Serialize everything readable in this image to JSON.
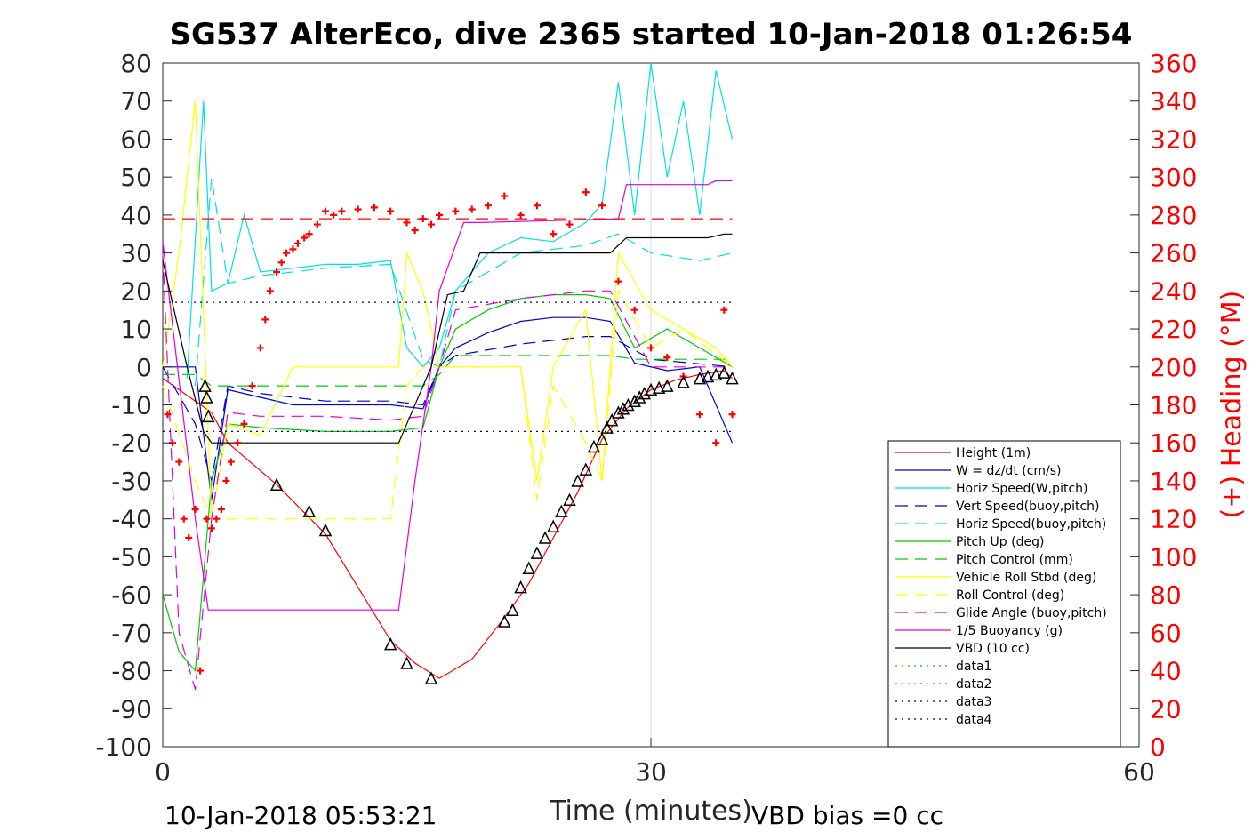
{
  "chart_data": {
    "type": "line",
    "title": "SG537 AlterEco, dive 2365 started 10-Jan-2018 01:26:54",
    "xlabel": "Time (minutes)",
    "ylabel": "",
    "ylabel_right": "(+) Heading (°M)",
    "xlim": [
      0,
      60
    ],
    "ylim": [
      -100,
      80
    ],
    "ylim_right": [
      0,
      360
    ],
    "xticks": [
      "0",
      "30",
      "60"
    ],
    "yticks": [
      "80",
      "70",
      "60",
      "50",
      "40",
      "30",
      "20",
      "10",
      "0",
      "-10",
      "-20",
      "-30",
      "-40",
      "-50",
      "-60",
      "-70",
      "-80",
      "-90",
      "-100"
    ],
    "yticks_right": [
      "360",
      "340",
      "320",
      "300",
      "280",
      "260",
      "240",
      "220",
      "200",
      "180",
      "160",
      "140",
      "120",
      "100",
      "80",
      "60",
      "40",
      "20",
      "0"
    ],
    "footer_left": "10-Jan-2018 05:53:21",
    "footer_right": "VBD bias =0 cc",
    "legend_position": "lower-right",
    "series": [
      {
        "name": "Height (1m)",
        "color": "#ff0000",
        "style": "solid",
        "x": [
          0,
          3,
          4,
          7,
          10,
          14,
          15.5,
          17,
          19,
          21,
          22.5,
          24,
          25.5,
          27,
          28.5,
          30,
          31.5,
          33,
          34.5,
          35
        ],
        "y": [
          -3,
          -12,
          -20,
          -31,
          -44,
          -72,
          -78,
          -82,
          -77,
          -66,
          -57,
          -45,
          -33,
          -19,
          -11,
          -6,
          -3.5,
          -2,
          -1,
          -3
        ]
      },
      {
        "name": "W = dz/dt (cm/s)",
        "color": "#0000cc",
        "style": "solid",
        "x": [
          0,
          1,
          2,
          3,
          4,
          6,
          8,
          10,
          12,
          14,
          16,
          17,
          18,
          20,
          22,
          24,
          26,
          27.5,
          29,
          31,
          33,
          35
        ],
        "y": [
          0,
          0,
          0,
          -35,
          -6,
          -8,
          -10,
          -10,
          -10,
          -10,
          -11,
          0,
          5,
          9,
          12,
          13,
          13,
          12,
          1,
          -1,
          0,
          -20
        ]
      },
      {
        "name": "Horiz Speed(W,pitch)",
        "color": "#00e0e0",
        "style": "solid",
        "x": [
          1.5,
          2.5,
          3,
          4,
          5,
          6,
          8,
          10,
          12,
          14,
          15,
          16,
          17,
          18,
          20,
          22,
          24,
          26,
          27,
          28,
          29,
          30,
          31,
          32,
          33,
          34,
          35
        ],
        "y": [
          -3,
          70,
          20,
          22,
          40,
          25,
          26,
          27,
          27,
          28,
          5,
          0,
          5,
          20,
          30,
          34,
          33,
          38,
          43,
          75,
          40,
          80,
          50,
          70,
          40,
          78,
          60
        ]
      },
      {
        "name": "Vert Speed(buoy,pitch)",
        "color": "#0000cc",
        "style": "dashed",
        "x": [
          0,
          2,
          3,
          4,
          6,
          10,
          14,
          16,
          17,
          18,
          22,
          26,
          27.5,
          30,
          35
        ],
        "y": [
          0,
          -15,
          -30,
          -5,
          -7,
          -9,
          -9,
          -10,
          0,
          3,
          6,
          8,
          8,
          2,
          0
        ]
      },
      {
        "name": "Horiz Speed(buoy,pitch)",
        "color": "#00e0e0",
        "style": "dashed",
        "x": [
          2,
          3,
          4,
          6,
          10,
          14,
          16,
          17,
          18,
          22,
          26,
          28,
          30,
          33,
          35
        ],
        "y": [
          -5,
          50,
          22,
          24,
          26,
          27,
          2,
          0,
          20,
          30,
          32,
          35,
          30,
          28,
          30
        ]
      },
      {
        "name": "Pitch Up (deg)",
        "color": "#00cc00",
        "style": "solid",
        "x": [
          0,
          1,
          2,
          3,
          4,
          6,
          10,
          14,
          16,
          17,
          18,
          20,
          22,
          24,
          26,
          27.5,
          29,
          31,
          33,
          35
        ],
        "y": [
          -60,
          -75,
          -80,
          -30,
          -15,
          -16,
          -17,
          -17,
          -16,
          0,
          10,
          15,
          18,
          19,
          19,
          18,
          5,
          10,
          5,
          0
        ]
      },
      {
        "name": "Pitch Control (mm)",
        "color": "#00cc00",
        "style": "dashed",
        "x": [
          0,
          2,
          3,
          4,
          8,
          14,
          16,
          17,
          18,
          22,
          27.5,
          29,
          35
        ],
        "y": [
          -2,
          -2,
          -5,
          -5,
          -5,
          -5,
          -5,
          -2,
          3,
          3,
          3,
          2,
          2
        ]
      },
      {
        "name": "Vehicle Roll Stbd (deg)",
        "color": "#ffff00",
        "style": "solid",
        "x": [
          0,
          1,
          2,
          3,
          4,
          6,
          8,
          10,
          12,
          14,
          14.5,
          15,
          16,
          17,
          18,
          20,
          22,
          23,
          24,
          26,
          27,
          28,
          30,
          32,
          34,
          35
        ],
        "y": [
          0,
          30,
          70,
          -40,
          -15,
          -18,
          0,
          0,
          0,
          0,
          0,
          30,
          20,
          0,
          0,
          0,
          0,
          -30,
          0,
          15,
          -30,
          30,
          15,
          10,
          5,
          0
        ]
      },
      {
        "name": "Roll Control (deg)",
        "color": "#ffff00",
        "style": "dashed",
        "x": [
          0,
          2,
          3,
          4,
          8,
          14,
          15,
          16,
          18,
          22,
          23,
          24,
          26,
          27,
          28,
          30,
          32,
          35
        ],
        "y": [
          -5,
          -30,
          -40,
          -40,
          -40,
          -40,
          -5,
          0,
          0,
          0,
          -35,
          -5,
          -20,
          -30,
          20,
          5,
          10,
          0
        ]
      },
      {
        "name": "Glide Angle (buoy,pitch)",
        "color": "#e000e0",
        "style": "dashed",
        "x": [
          0,
          1,
          2,
          3,
          4,
          6,
          10,
          14,
          16,
          17,
          18,
          22,
          26,
          27.5,
          30,
          35
        ],
        "y": [
          30,
          -70,
          -85,
          -40,
          -12,
          -13,
          -13,
          -14,
          -13,
          0,
          15,
          18,
          20,
          20,
          0,
          0
        ]
      },
      {
        "name": "1/5 Buoyancy (g)",
        "color": "#e000e0",
        "style": "solid",
        "x": [
          0,
          2,
          2.8,
          3,
          6,
          10,
          14.5,
          15.5,
          16.5,
          17,
          18.5,
          19.5,
          28,
          28.5,
          33.5,
          34,
          35
        ],
        "y": [
          33,
          -40,
          -64,
          -64,
          -64,
          -64,
          -64,
          -30,
          0,
          20,
          38,
          38,
          39,
          48,
          48,
          49,
          49
        ]
      },
      {
        "name": "VBD (10 cc)",
        "color": "#000000",
        "style": "solid",
        "x": [
          0,
          1.5,
          2.5,
          3,
          5,
          10,
          14.5,
          16.5,
          17.5,
          18.5,
          19.5,
          27.5,
          28.5,
          33.5,
          34.5,
          35
        ],
        "y": [
          28,
          0,
          -17,
          -20,
          -20,
          -20,
          -20,
          0,
          19,
          20,
          30,
          30,
          34,
          34,
          35,
          35
        ]
      },
      {
        "name": "data1",
        "color": "#00cc00",
        "style": "dotted",
        "x": [],
        "y": []
      },
      {
        "name": "data2",
        "color": "#00cc00",
        "style": "dotted",
        "x": [],
        "y": []
      },
      {
        "name": "data3",
        "color": "#000080",
        "style": "dotted",
        "x": [
          0,
          35
        ],
        "y": [
          17,
          17
        ]
      },
      {
        "name": "data4",
        "color": "#000080",
        "style": "dotted",
        "x": [
          0,
          35
        ],
        "y": [
          -17,
          -17
        ]
      }
    ],
    "heading_reference": {
      "color": "#ff0000",
      "value": 278,
      "x": [
        0,
        35
      ]
    },
    "heading_points": {
      "color": "#ff0000",
      "x": [
        0.3,
        0.6,
        1,
        1.3,
        1.6,
        2,
        2.3,
        2.7,
        3,
        3.3,
        3.6,
        3.9,
        4.2,
        4.6,
        5,
        5.5,
        6,
        6.3,
        6.6,
        7,
        7.3,
        7.6,
        8,
        8.3,
        8.7,
        9,
        9.5,
        10,
        10.5,
        11,
        12,
        13,
        14,
        15,
        15.5,
        16,
        16.5,
        17,
        18,
        19,
        20,
        21,
        22,
        23,
        24,
        25,
        26,
        27,
        28,
        29,
        30,
        31,
        32,
        33,
        34,
        34.5,
        35
      ],
      "y": [
        175,
        160,
        150,
        120,
        110,
        125,
        40,
        120,
        115,
        120,
        125,
        140,
        150,
        160,
        170,
        190,
        210,
        225,
        240,
        250,
        255,
        260,
        262,
        265,
        268,
        270,
        275,
        282,
        280,
        282,
        283,
        284,
        282,
        276,
        272,
        278,
        275,
        280,
        282,
        283,
        285,
        290,
        280,
        285,
        270,
        275,
        292,
        285,
        245,
        230,
        210,
        205,
        195,
        175,
        160,
        230,
        175
      ]
    },
    "markers": {
      "color": "#000000",
      "symbol": "triangle",
      "x": [
        2.6,
        2.7,
        2.8,
        7,
        9,
        10,
        14,
        15,
        16.5,
        21,
        21.5,
        22,
        22.5,
        23,
        23.5,
        24,
        24.5,
        25,
        25.5,
        26,
        26.5,
        27,
        27.3,
        27.6,
        28,
        28.3,
        28.6,
        29,
        29.3,
        29.6,
        30,
        30.5,
        31,
        32,
        33,
        33.5,
        34,
        34.5,
        35
      ],
      "y": [
        -5,
        -8,
        -13,
        -31,
        -38,
        -43,
        -73,
        -78,
        -82,
        -67,
        -64,
        -58,
        -53,
        -49,
        -45,
        -42,
        -38,
        -35,
        -30,
        -27,
        -21,
        -19,
        -16,
        -14,
        -12,
        -11,
        -10,
        -9,
        -8,
        -7,
        -6,
        -5.5,
        -5,
        -4,
        -3,
        -2.5,
        -2,
        -1.5,
        -3
      ]
    },
    "marker_labels": {
      "x_note": "triangle markers along height curve"
    }
  }
}
